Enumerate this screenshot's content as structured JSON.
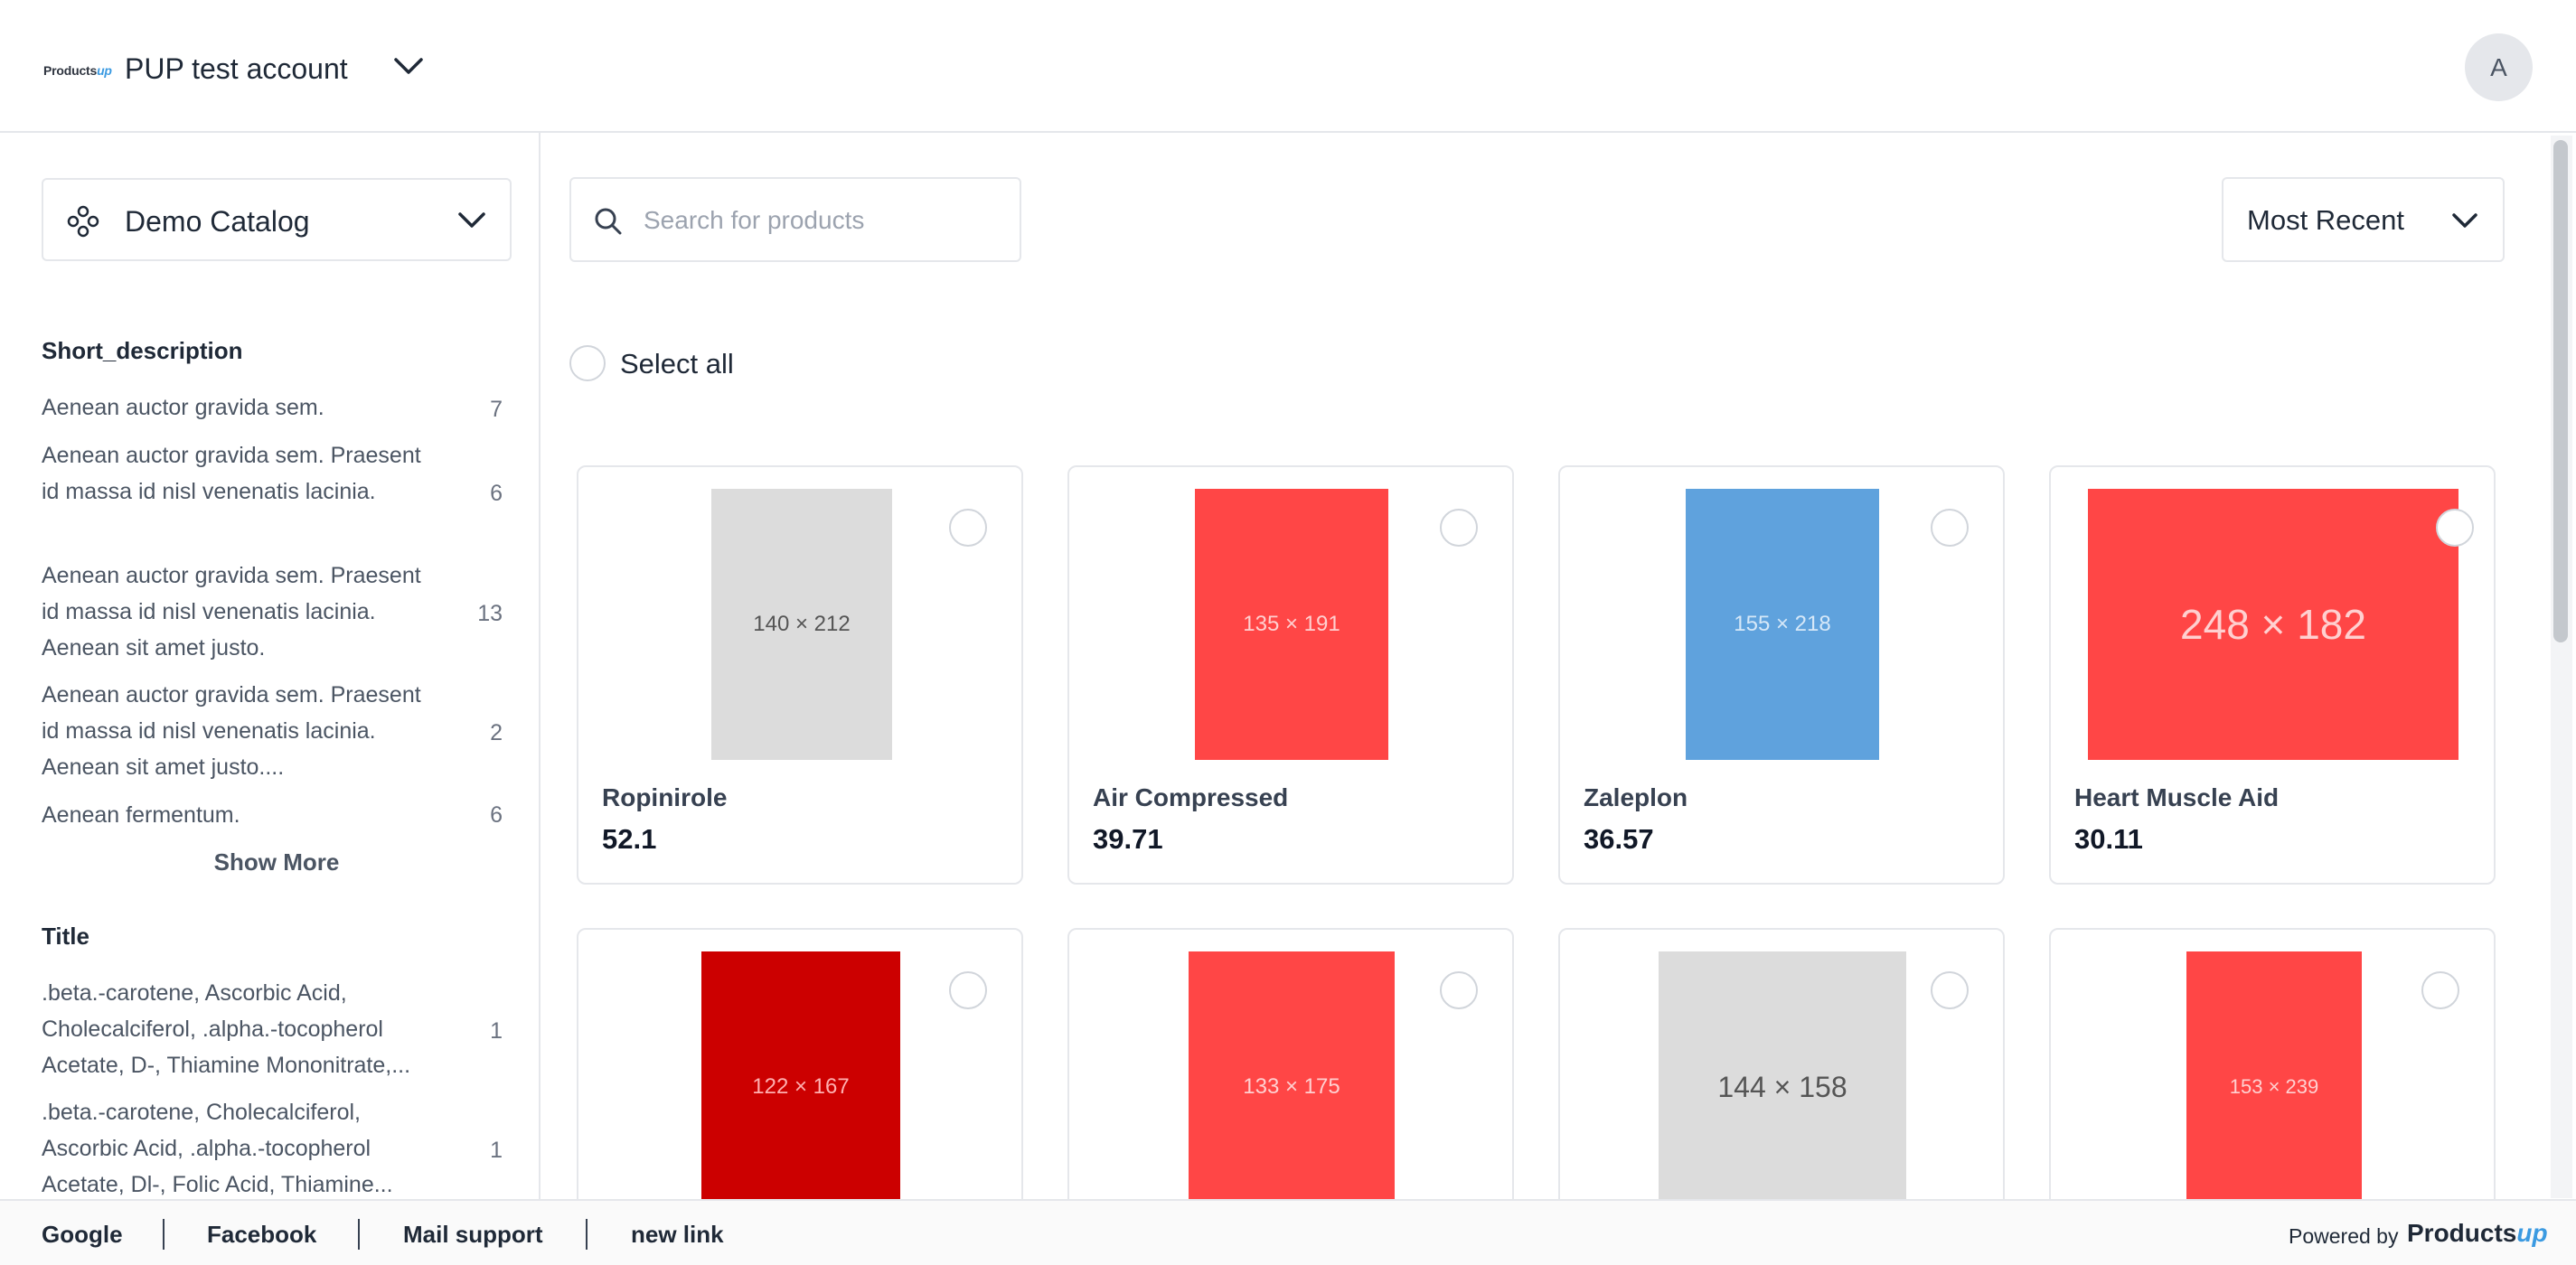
{
  "header": {
    "logo_text": "Products",
    "logo_text_accent": "up",
    "account_name": "PUP test account",
    "avatar_initial": "A"
  },
  "sidebar": {
    "catalog_label": "Demo Catalog",
    "facets": [
      {
        "title": "Short_description",
        "items": [
          {
            "text": "Aenean auctor gravida sem.",
            "count": "7"
          },
          {
            "text": "Aenean auctor gravida sem. Praesent id massa id nisl venenatis lacinia.",
            "count": "6"
          },
          {
            "text": "Aenean auctor gravida sem. Praesent id massa id nisl venenatis lacinia. Aenean sit amet justo.",
            "count": "13"
          },
          {
            "text": "Aenean auctor gravida sem. Praesent id massa id nisl venenatis lacinia. Aenean sit amet justo....",
            "count": "2"
          },
          {
            "text": "Aenean fermentum.",
            "count": "6"
          }
        ],
        "show_more": "Show More"
      },
      {
        "title": "Title",
        "items": [
          {
            "text": ".beta.-carotene, Ascorbic Acid, Cholecalciferol, .alpha.-tocopherol Acetate, D-, Thiamine Mononitrate,...",
            "count": "1"
          },
          {
            "text": ".beta.-carotene, Cholecalciferol, Ascorbic Acid, .alpha.-tocopherol Acetate, Dl-, Folic Acid, Thiamine...",
            "count": "1"
          }
        ]
      }
    ]
  },
  "main": {
    "search_placeholder": "Search for products",
    "sort_label": "Most Recent",
    "select_all_label": "Select all",
    "products": [
      {
        "name": "Ropinirole",
        "price": "52.1",
        "image_label": "140 × 212",
        "color": "#dcdcdc",
        "text_color": "#555555"
      },
      {
        "name": "Air Compressed",
        "price": "39.71",
        "image_label": "135 × 191",
        "color": "#ff4646",
        "text_color": "#ffd0d0"
      },
      {
        "name": "Zaleplon",
        "price": "36.57",
        "image_label": "155 × 218",
        "color": "#5fa2dd",
        "text_color": "#d6e8f8"
      },
      {
        "name": "Heart Muscle Aid",
        "price": "30.11",
        "image_label": "248 × 182",
        "color": "#ff4646",
        "text_color": "#ffd0d0"
      },
      {
        "name": "",
        "price": "",
        "image_label": "122 × 167",
        "color": "#cc0000",
        "text_color": "#ffb0b0"
      },
      {
        "name": "",
        "price": "",
        "image_label": "133 × 175",
        "color": "#ff4646",
        "text_color": "#ffd0d0"
      },
      {
        "name": "",
        "price": "",
        "image_label": "144 × 158",
        "color": "#dcdcdc",
        "text_color": "#555555"
      },
      {
        "name": "",
        "price": "",
        "image_label": "153 × 239",
        "color": "#ff4646",
        "text_color": "#ffd0d0"
      }
    ]
  },
  "footer": {
    "links": [
      "Google",
      "Facebook",
      "Mail support",
      "new link"
    ],
    "powered_by": "Powered by",
    "powered_logo_text": "Products",
    "powered_logo_accent": "up"
  }
}
